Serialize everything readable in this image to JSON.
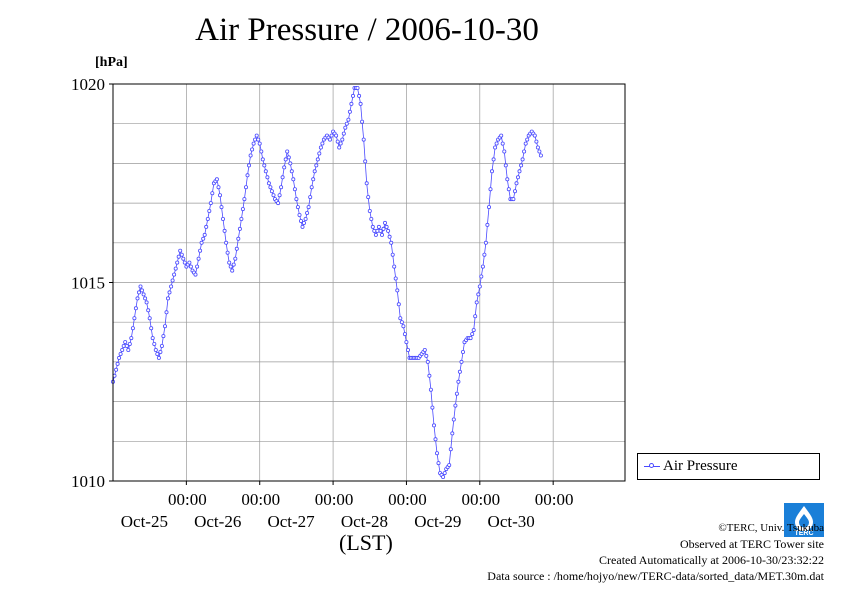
{
  "chart_data": {
    "type": "line",
    "title": "Air Pressure / 2006-10-30",
    "ylabel": "[hPa]",
    "xlabel": "(LST)",
    "ylim": [
      1010,
      1020
    ],
    "y_ticks": [
      "1010",
      "1015",
      "1020"
    ],
    "x_ticks": [
      {
        "time": "00:00",
        "date": "Oct-25"
      },
      {
        "time": "00:00",
        "date": "Oct-26"
      },
      {
        "time": "00:00",
        "date": "Oct-27"
      },
      {
        "time": "00:00",
        "date": "Oct-28"
      },
      {
        "time": "00:00",
        "date": "Oct-29"
      },
      {
        "time": "00:00",
        "date": "Oct-30"
      }
    ],
    "x_range": [
      "2006-10-24T00:00",
      "2006-10-30T23:30"
    ],
    "grid": true,
    "legend_position": "right",
    "series": [
      {
        "name": "Air Pressure",
        "color": "#4a4aff",
        "points": [
          [
            "10-24T00:00",
            1012.5
          ],
          [
            "10-24T01:00",
            1012.8
          ],
          [
            "10-24T02:00",
            1013.1
          ],
          [
            "10-24T03:00",
            1013.3
          ],
          [
            "10-24T04:00",
            1013.5
          ],
          [
            "10-24T05:00",
            1013.3
          ],
          [
            "10-24T06:00",
            1013.6
          ],
          [
            "10-24T07:00",
            1014.1
          ],
          [
            "10-24T08:00",
            1014.6
          ],
          [
            "10-24T09:00",
            1014.9
          ],
          [
            "10-24T10:00",
            1014.7
          ],
          [
            "10-24T11:00",
            1014.5
          ],
          [
            "10-24T12:00",
            1014.1
          ],
          [
            "10-24T13:00",
            1013.6
          ],
          [
            "10-24T14:00",
            1013.3
          ],
          [
            "10-24T15:00",
            1013.1
          ],
          [
            "10-24T16:00",
            1013.4
          ],
          [
            "10-24T17:00",
            1013.9
          ],
          [
            "10-24T18:00",
            1014.6
          ],
          [
            "10-24T19:00",
            1014.9
          ],
          [
            "10-24T20:00",
            1015.2
          ],
          [
            "10-24T21:00",
            1015.5
          ],
          [
            "10-24T22:00",
            1015.8
          ],
          [
            "10-24T23:00",
            1015.6
          ],
          [
            "10-25T00:00",
            1015.4
          ],
          [
            "10-25T01:00",
            1015.5
          ],
          [
            "10-25T02:00",
            1015.3
          ],
          [
            "10-25T03:00",
            1015.2
          ],
          [
            "10-25T04:00",
            1015.6
          ],
          [
            "10-25T05:00",
            1016.0
          ],
          [
            "10-25T06:00",
            1016.2
          ],
          [
            "10-25T07:00",
            1016.6
          ],
          [
            "10-25T08:00",
            1017.0
          ],
          [
            "10-25T09:00",
            1017.5
          ],
          [
            "10-25T10:00",
            1017.6
          ],
          [
            "10-25T11:00",
            1017.2
          ],
          [
            "10-25T12:00",
            1016.6
          ],
          [
            "10-25T13:00",
            1016.0
          ],
          [
            "10-25T14:00",
            1015.5
          ],
          [
            "10-25T15:00",
            1015.3
          ],
          [
            "10-25T16:00",
            1015.6
          ],
          [
            "10-25T17:00",
            1016.1
          ],
          [
            "10-25T18:00",
            1016.6
          ],
          [
            "10-25T19:00",
            1017.1
          ],
          [
            "10-25T20:00",
            1017.7
          ],
          [
            "10-25T21:00",
            1018.2
          ],
          [
            "10-25T22:00",
            1018.5
          ],
          [
            "10-25T23:00",
            1018.7
          ],
          [
            "10-26T00:00",
            1018.5
          ],
          [
            "10-26T01:00",
            1018.1
          ],
          [
            "10-26T02:00",
            1017.8
          ],
          [
            "10-26T03:00",
            1017.5
          ],
          [
            "10-26T04:00",
            1017.3
          ],
          [
            "10-26T05:00",
            1017.1
          ],
          [
            "10-26T06:00",
            1017.0
          ],
          [
            "10-26T07:00",
            1017.4
          ],
          [
            "10-26T08:00",
            1017.9
          ],
          [
            "10-26T09:00",
            1018.3
          ],
          [
            "10-26T10:00",
            1018.0
          ],
          [
            "10-26T11:00",
            1017.6
          ],
          [
            "10-26T12:00",
            1017.1
          ],
          [
            "10-26T13:00",
            1016.7
          ],
          [
            "10-26T14:00",
            1016.4
          ],
          [
            "10-26T15:00",
            1016.6
          ],
          [
            "10-26T16:00",
            1016.9
          ],
          [
            "10-26T17:00",
            1017.4
          ],
          [
            "10-26T18:00",
            1017.8
          ],
          [
            "10-26T19:00",
            1018.1
          ],
          [
            "10-26T20:00",
            1018.4
          ],
          [
            "10-26T21:00",
            1018.6
          ],
          [
            "10-26T22:00",
            1018.7
          ],
          [
            "10-26T23:00",
            1018.6
          ],
          [
            "10-27T00:00",
            1018.8
          ],
          [
            "10-27T01:00",
            1018.7
          ],
          [
            "10-27T02:00",
            1018.4
          ],
          [
            "10-27T03:00",
            1018.6
          ],
          [
            "10-27T04:00",
            1018.9
          ],
          [
            "10-27T05:00",
            1019.1
          ],
          [
            "10-27T06:00",
            1019.5
          ],
          [
            "10-27T07:00",
            1019.9
          ],
          [
            "10-27T08:00",
            1019.9
          ],
          [
            "10-27T09:00",
            1019.5
          ],
          [
            "10-27T10:00",
            1018.6
          ],
          [
            "10-27T11:00",
            1017.5
          ],
          [
            "10-27T12:00",
            1016.8
          ],
          [
            "10-27T13:00",
            1016.4
          ],
          [
            "10-27T14:00",
            1016.2
          ],
          [
            "10-27T15:00",
            1016.4
          ],
          [
            "10-27T16:00",
            1016.2
          ],
          [
            "10-27T17:00",
            1016.5
          ],
          [
            "10-27T18:00",
            1016.3
          ],
          [
            "10-27T19:00",
            1016.0
          ],
          [
            "10-27T20:00",
            1015.4
          ],
          [
            "10-27T21:00",
            1014.8
          ],
          [
            "10-27T22:00",
            1014.1
          ],
          [
            "10-27T23:00",
            1013.9
          ],
          [
            "10-28T00:00",
            1013.5
          ],
          [
            "10-28T01:00",
            1013.1
          ],
          [
            "10-28T02:00",
            1013.1
          ],
          [
            "10-28T03:00",
            1013.1
          ],
          [
            "10-28T04:00",
            1013.1
          ],
          [
            "10-28T05:00",
            1013.2
          ],
          [
            "10-28T06:00",
            1013.3
          ],
          [
            "10-28T07:00",
            1013.0
          ],
          [
            "10-28T08:00",
            1012.3
          ],
          [
            "10-28T09:00",
            1011.4
          ],
          [
            "10-28T10:00",
            1010.7
          ],
          [
            "10-28T11:00",
            1010.2
          ],
          [
            "10-28T12:00",
            1010.1
          ],
          [
            "10-28T13:00",
            1010.3
          ],
          [
            "10-28T14:00",
            1010.4
          ],
          [
            "10-28T15:00",
            1011.2
          ],
          [
            "10-28T16:00",
            1011.9
          ],
          [
            "10-28T17:00",
            1012.5
          ],
          [
            "10-28T18:00",
            1013.0
          ],
          [
            "10-28T19:00",
            1013.5
          ],
          [
            "10-28T20:00",
            1013.6
          ],
          [
            "10-28T21:00",
            1013.6
          ],
          [
            "10-28T22:00",
            1013.8
          ],
          [
            "10-28T23:00",
            1014.5
          ],
          [
            "10-29T00:00",
            1014.9
          ],
          [
            "10-29T01:00",
            1015.4
          ],
          [
            "10-29T02:00",
            1016.0
          ],
          [
            "10-29T03:00",
            1016.9
          ],
          [
            "10-29T04:00",
            1017.8
          ],
          [
            "10-29T05:00",
            1018.4
          ],
          [
            "10-29T06:00",
            1018.6
          ],
          [
            "10-29T07:00",
            1018.7
          ],
          [
            "10-29T08:00",
            1018.3
          ],
          [
            "10-29T09:00",
            1017.6
          ],
          [
            "10-29T10:00",
            1017.1
          ],
          [
            "10-29T11:00",
            1017.1
          ],
          [
            "10-29T12:00",
            1017.5
          ],
          [
            "10-29T13:00",
            1017.8
          ],
          [
            "10-29T14:00",
            1018.1
          ],
          [
            "10-29T15:00",
            1018.5
          ],
          [
            "10-29T16:00",
            1018.7
          ],
          [
            "10-29T17:00",
            1018.8
          ],
          [
            "10-29T18:00",
            1018.7
          ],
          [
            "10-29T19:00",
            1018.4
          ],
          [
            "10-29T20:00",
            1018.2
          ]
        ]
      }
    ]
  },
  "legend": {
    "label": "Air Pressure"
  },
  "credits": {
    "copyright": "©TERC, Univ. Tsukuba",
    "site": "Observed at TERC Tower site",
    "created": "Created Automatically at 2006-10-30/23:32:22",
    "source": "Data source : /home/hojyo/new/TERC-data/sorted_data/MET.30m.dat"
  },
  "logo": {
    "text": "TERC"
  }
}
